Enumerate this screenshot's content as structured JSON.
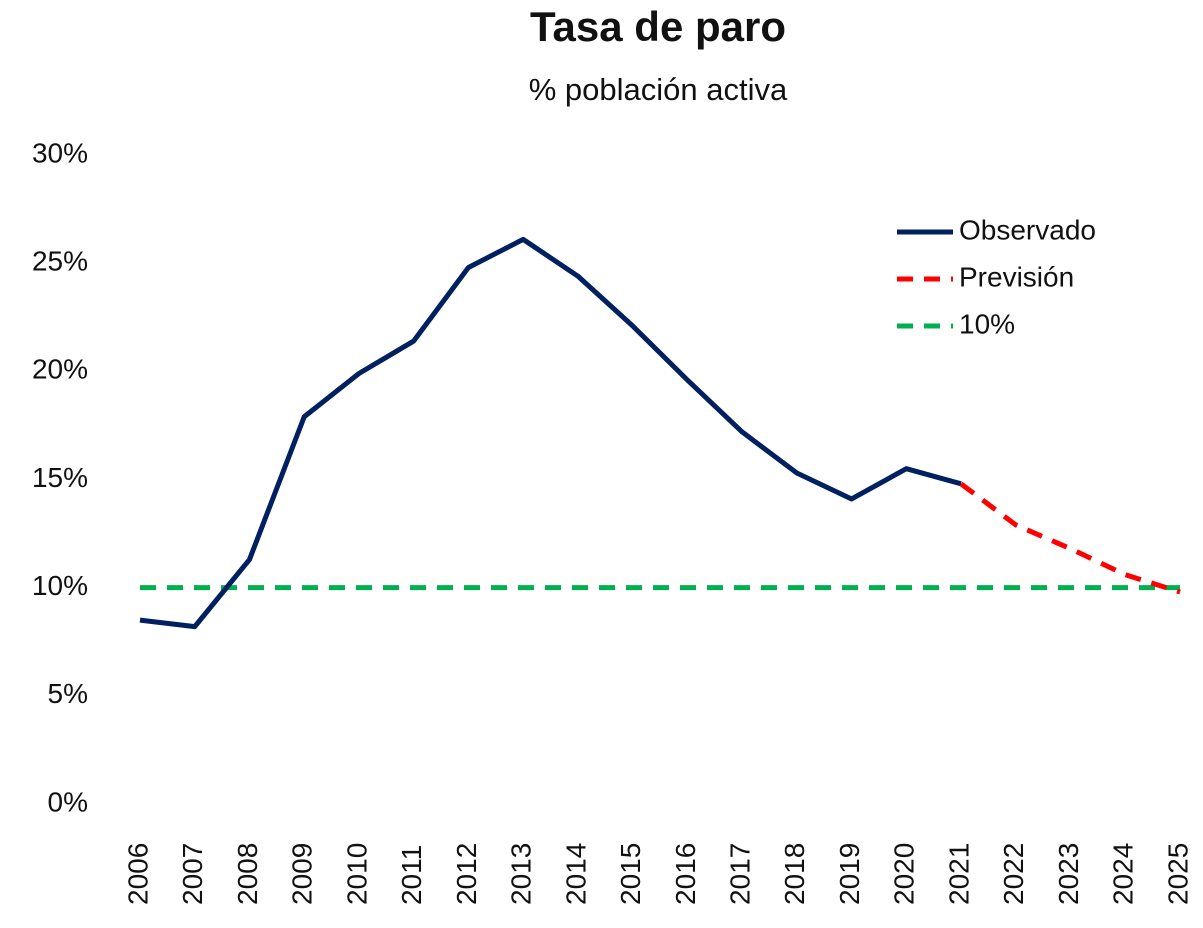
{
  "chart_data": {
    "type": "line",
    "title": "Tasa de paro",
    "subtitle": "% población activa",
    "categories": [
      "2006",
      "2007",
      "2008",
      "2009",
      "2010",
      "2011",
      "2012",
      "2013",
      "2014",
      "2015",
      "2016",
      "2017",
      "2018",
      "2019",
      "2020",
      "2021",
      "2022",
      "2023",
      "2024",
      "2025"
    ],
    "series": [
      {
        "name": "Observado",
        "color": "#002060",
        "line_style": "solid",
        "values": [
          8.5,
          8.2,
          11.3,
          17.9,
          19.9,
          21.4,
          24.8,
          26.1,
          24.4,
          22.1,
          19.6,
          17.2,
          15.3,
          14.1,
          15.5,
          14.8,
          null,
          null,
          null,
          null
        ]
      },
      {
        "name": "Previsión",
        "color": "#ff0000",
        "line_style": "dashed",
        "values": [
          null,
          null,
          null,
          null,
          null,
          null,
          null,
          null,
          null,
          null,
          null,
          null,
          null,
          null,
          null,
          14.8,
          12.9,
          11.8,
          10.6,
          9.8
        ]
      },
      {
        "name": "10%",
        "color": "#00b050",
        "line_style": "dashed",
        "values": [
          10,
          10,
          10,
          10,
          10,
          10,
          10,
          10,
          10,
          10,
          10,
          10,
          10,
          10,
          10,
          10,
          10,
          10,
          10,
          10
        ]
      }
    ],
    "ylim": [
      0,
      30
    ],
    "yticks": [
      {
        "value": 0,
        "label": "0%"
      },
      {
        "value": 5,
        "label": "5%"
      },
      {
        "value": 10,
        "label": "10%"
      },
      {
        "value": 15,
        "label": "15%"
      },
      {
        "value": 20,
        "label": "20%"
      },
      {
        "value": 25,
        "label": "25%"
      },
      {
        "value": 30,
        "label": "30%"
      }
    ],
    "grid": false,
    "legend": "top-right"
  }
}
